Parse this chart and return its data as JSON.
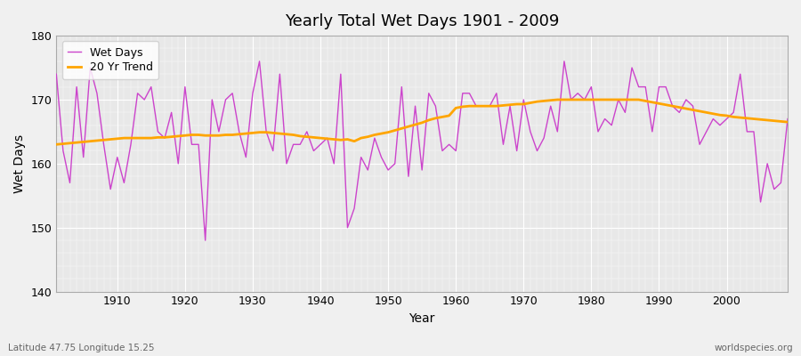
{
  "title": "Yearly Total Wet Days 1901 - 2009",
  "xlabel": "Year",
  "ylabel": "Wet Days",
  "lat_lon_label": "Latitude 47.75 Longitude 15.25",
  "watermark": "worldspecies.org",
  "ylim": [
    140,
    180
  ],
  "xlim": [
    1901,
    2009
  ],
  "wet_days_color": "#CC44CC",
  "trend_color": "#FFA500",
  "background_color": "#F0F0F0",
  "plot_bg_color": "#E8E8E8",
  "grid_color": "#FFFFFF",
  "years": [
    1901,
    1902,
    1903,
    1904,
    1905,
    1906,
    1907,
    1908,
    1909,
    1910,
    1911,
    1912,
    1913,
    1914,
    1915,
    1916,
    1917,
    1918,
    1919,
    1920,
    1921,
    1922,
    1923,
    1924,
    1925,
    1926,
    1927,
    1928,
    1929,
    1930,
    1931,
    1932,
    1933,
    1934,
    1935,
    1936,
    1937,
    1938,
    1939,
    1940,
    1941,
    1942,
    1943,
    1944,
    1945,
    1946,
    1947,
    1948,
    1949,
    1950,
    1951,
    1952,
    1953,
    1954,
    1955,
    1956,
    1957,
    1958,
    1959,
    1960,
    1961,
    1962,
    1963,
    1964,
    1965,
    1966,
    1967,
    1968,
    1969,
    1970,
    1971,
    1972,
    1973,
    1974,
    1975,
    1976,
    1977,
    1978,
    1979,
    1980,
    1981,
    1982,
    1983,
    1984,
    1985,
    1986,
    1987,
    1988,
    1989,
    1990,
    1991,
    1992,
    1993,
    1994,
    1995,
    1996,
    1997,
    1998,
    1999,
    2000,
    2001,
    2002,
    2003,
    2004,
    2005,
    2006,
    2007,
    2008,
    2009
  ],
  "wet_days": [
    174,
    162,
    157,
    172,
    161,
    175,
    171,
    163,
    156,
    161,
    157,
    163,
    171,
    170,
    172,
    165,
    164,
    168,
    160,
    172,
    163,
    163,
    148,
    170,
    165,
    170,
    171,
    165,
    161,
    171,
    176,
    165,
    162,
    174,
    160,
    163,
    163,
    165,
    162,
    163,
    164,
    160,
    174,
    150,
    153,
    161,
    159,
    164,
    161,
    159,
    160,
    172,
    158,
    169,
    159,
    171,
    169,
    162,
    163,
    162,
    171,
    171,
    169,
    169,
    169,
    171,
    163,
    169,
    162,
    170,
    165,
    162,
    164,
    169,
    165,
    176,
    170,
    171,
    170,
    172,
    165,
    167,
    166,
    170,
    168,
    175,
    172,
    172,
    165,
    172,
    172,
    169,
    168,
    170,
    169,
    163,
    165,
    167,
    166,
    167,
    168,
    174,
    165,
    165,
    154,
    160,
    156,
    157,
    167
  ],
  "trend": [
    163.0,
    163.1,
    163.2,
    163.3,
    163.4,
    163.5,
    163.6,
    163.7,
    163.8,
    163.9,
    164.0,
    164.0,
    164.0,
    164.0,
    164.0,
    164.1,
    164.1,
    164.2,
    164.3,
    164.4,
    164.5,
    164.5,
    164.4,
    164.4,
    164.4,
    164.5,
    164.5,
    164.6,
    164.7,
    164.8,
    164.9,
    164.9,
    164.8,
    164.7,
    164.6,
    164.5,
    164.3,
    164.2,
    164.1,
    164.0,
    163.9,
    163.8,
    163.7,
    163.8,
    163.5,
    164.0,
    164.2,
    164.5,
    164.7,
    164.9,
    165.2,
    165.5,
    165.8,
    166.1,
    166.4,
    166.8,
    167.1,
    167.3,
    167.5,
    168.7,
    168.9,
    169.0,
    169.0,
    169.0,
    169.0,
    169.0,
    169.1,
    169.2,
    169.3,
    169.3,
    169.5,
    169.7,
    169.8,
    169.9,
    170.0,
    170.0,
    170.0,
    170.0,
    170.0,
    170.0,
    170.0,
    170.0,
    170.0,
    170.0,
    170.0,
    170.0,
    170.0,
    169.8,
    169.6,
    169.4,
    169.2,
    169.0,
    168.8,
    168.6,
    168.4,
    168.2,
    168.0,
    167.8,
    167.6,
    167.5,
    167.3,
    167.2,
    167.1,
    167.0,
    166.9,
    166.8,
    166.7,
    166.6,
    166.5
  ]
}
